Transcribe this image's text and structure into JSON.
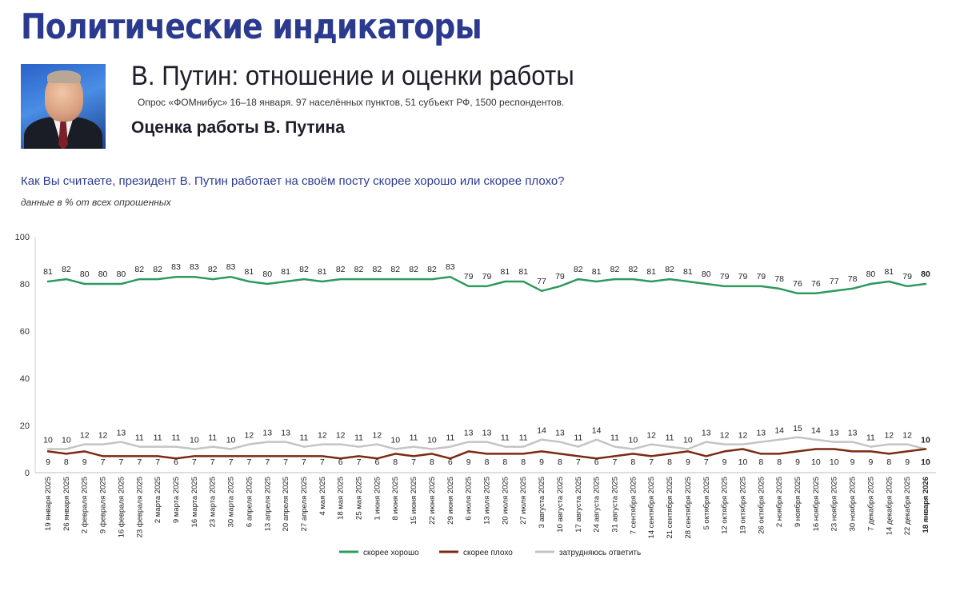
{
  "header": {
    "main_title": "Политические индикаторы",
    "subtitle": "В. Путин: отношение и оценки работы",
    "survey_info": "Опрос «ФОМнибус» 16–18 января. 97 населённых пунктов, 51 субъект РФ, 1500 респондентов.",
    "section_title": "Оценка работы В. Путина"
  },
  "question": {
    "text": "Как Вы считаете, президент В. Путин работает на своём посту скорее хорошо или скорее плохо?",
    "note": "данные в % от всех опрошенных"
  },
  "colors": {
    "good": "#2e9a5e",
    "bad": "#7b2a12",
    "unsure": "#c4c4c4",
    "title": "#2b3a8f"
  },
  "chart_data": {
    "type": "line",
    "ylim": [
      0,
      100
    ],
    "yticks": [
      0,
      20,
      40,
      60,
      80,
      100
    ],
    "grid": false,
    "legend_position": "bottom-center",
    "categories": [
      "19 января 2025",
      "26 января 2025",
      "2 февраля 2025",
      "9 февраля 2025",
      "16 февраля 2025",
      "23 февраля 2025",
      "2 марта 2025",
      "9 марта 2025",
      "16 марта 2025",
      "23 марта 2025",
      "30 марта 2025",
      "6 апреля 2025",
      "13 апреля 2025",
      "20 апреля 2025",
      "27 апреля 2025",
      "4 мая 2025",
      "18 мая 2025",
      "25 мая 2025",
      "1 июня 2025",
      "8 июня 2025",
      "15 июня 2025",
      "22 июня 2025",
      "29 июня 2025",
      "6 июля 2025",
      "13 июля 2025",
      "20 июля 2025",
      "27 июля 2025",
      "3 августа 2025",
      "10 августа 2025",
      "17 августа 2025",
      "24 августа 2025",
      "31 августа 2025",
      "7 сентября 2025",
      "14 сентября 2025",
      "21 сентября 2025",
      "28 сентября 2025",
      "5 октября 2025",
      "12 октября 2025",
      "19 октября 2025",
      "26 октября 2025",
      "2 ноября 2025",
      "9 ноября 2025",
      "16 ноября 2025",
      "23 ноября 2025",
      "30 ноября 2025",
      "7 декабря 2025",
      "14 декабря 2025",
      "22 декабря 2025",
      "18 января 2026"
    ],
    "series": [
      {
        "name": "скорее хорошо",
        "color": "#2e9a5e",
        "values": [
          81,
          82,
          80,
          80,
          80,
          82,
          82,
          83,
          83,
          82,
          83,
          81,
          80,
          81,
          82,
          81,
          82,
          82,
          82,
          82,
          82,
          82,
          83,
          79,
          79,
          81,
          81,
          77,
          79,
          82,
          81,
          82,
          82,
          81,
          82,
          81,
          80,
          79,
          79,
          79,
          78,
          76,
          76,
          77,
          78,
          80,
          81,
          79,
          80
        ]
      },
      {
        "name": "скорее плохо",
        "color": "#7b2a12",
        "values": [
          9,
          8,
          9,
          7,
          7,
          7,
          7,
          6,
          7,
          7,
          7,
          7,
          7,
          7,
          7,
          7,
          6,
          7,
          6,
          8,
          7,
          8,
          6,
          9,
          8,
          8,
          8,
          9,
          8,
          7,
          6,
          7,
          8,
          7,
          8,
          9,
          7,
          9,
          10,
          8,
          8,
          9,
          10,
          10,
          9,
          9,
          8,
          9,
          10
        ]
      },
      {
        "name": "затрудняюсь ответить",
        "color": "#c4c4c4",
        "values": [
          10,
          10,
          12,
          12,
          13,
          11,
          11,
          11,
          10,
          11,
          10,
          12,
          13,
          13,
          11,
          12,
          12,
          11,
          12,
          10,
          11,
          10,
          11,
          13,
          13,
          11,
          11,
          14,
          13,
          11,
          14,
          11,
          10,
          12,
          11,
          10,
          13,
          12,
          12,
          13,
          14,
          15,
          14,
          13,
          13,
          11,
          12,
          12,
          10
        ]
      }
    ]
  }
}
